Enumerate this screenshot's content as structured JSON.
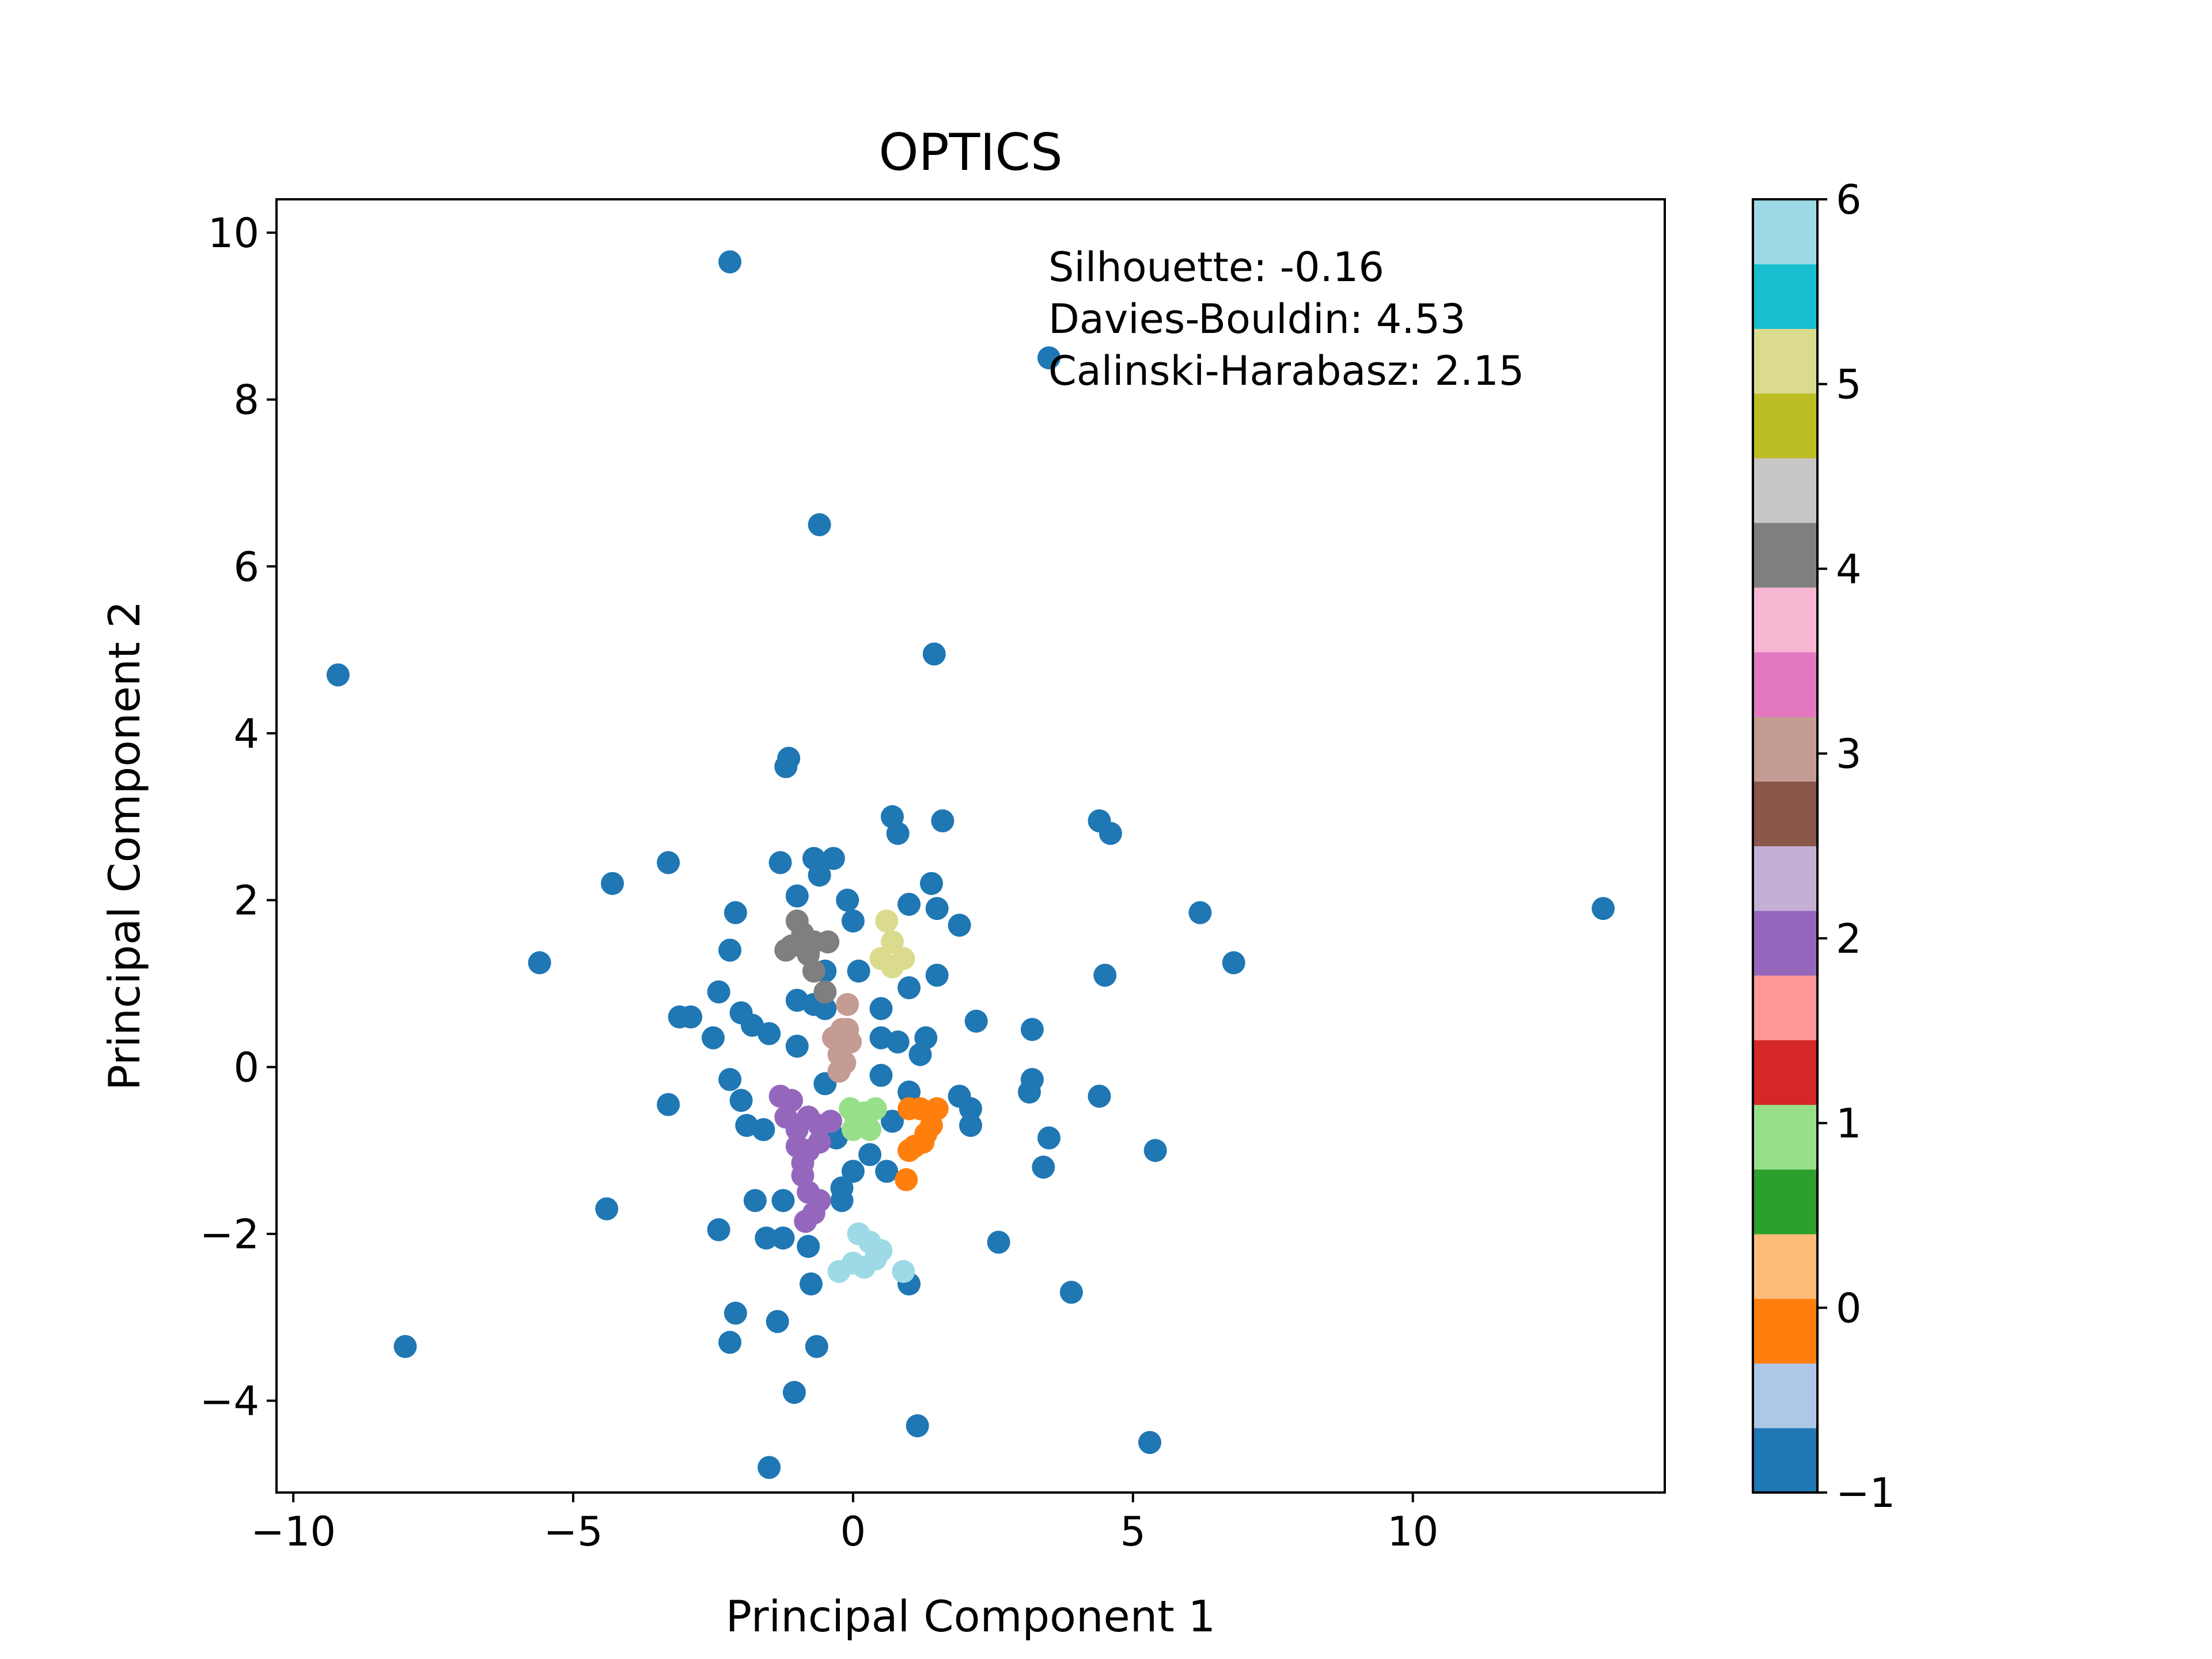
{
  "chart_data": {
    "type": "scatter",
    "title": "OPTICS",
    "xlabel": "Principal Component 1",
    "ylabel": "Principal Component 2",
    "xlim": [
      -10.3,
      14.5
    ],
    "ylim": [
      -5.1,
      10.4
    ],
    "xticks": [
      -10,
      -5,
      0,
      5,
      10
    ],
    "xtick_labels": [
      "−10",
      "−5",
      "0",
      "5",
      "10"
    ],
    "yticks": [
      -4,
      -2,
      0,
      2,
      4,
      6,
      8,
      10
    ],
    "ytick_labels": [
      "−4",
      "−2",
      "0",
      "2",
      "4",
      "6",
      "8",
      "10"
    ],
    "grid": false,
    "annotations": {
      "silhouette": "Silhouette: -0.16",
      "davies_bouldin": "Davies-Bouldin: 4.53",
      "calinski_harabasz": "Calinski-Harabasz: 2.15"
    },
    "colorbar": {
      "colormap": "tab20",
      "range": [
        -1,
        6
      ],
      "ticks": [
        -1,
        0,
        1,
        2,
        3,
        4,
        5,
        6
      ],
      "tick_labels": [
        "−1",
        "0",
        "1",
        "2",
        "3",
        "4",
        "5",
        "6"
      ],
      "colors": [
        "#1f77b4",
        "#aec7e8",
        "#ff7f0e",
        "#ffbb78",
        "#2ca02c",
        "#98df8a",
        "#d62728",
        "#ff9896",
        "#9467bd",
        "#c5b0d5",
        "#8c564b",
        "#c49c94",
        "#e377c2",
        "#f7b6d2",
        "#7f7f7f",
        "#c7c7c7",
        "#bcbd22",
        "#dbdb8d",
        "#17becf",
        "#9edae5"
      ]
    },
    "label_colors": {
      "-1": "#1f77b4",
      "0": "#ff7f0e",
      "1": "#98df8a",
      "2": "#9467bd",
      "3": "#c49c94",
      "4": "#7f7f7f",
      "5": "#dbdb8d",
      "6": "#9edae5"
    },
    "points": [
      [
        -2.2,
        9.65,
        -1
      ],
      [
        3.5,
        8.5,
        -1
      ],
      [
        -0.6,
        6.5,
        -1
      ],
      [
        -9.2,
        4.7,
        -1
      ],
      [
        1.45,
        4.95,
        -1
      ],
      [
        -1.15,
        3.7,
        -1
      ],
      [
        -1.2,
        3.6,
        -1
      ],
      [
        0.7,
        3.0,
        -1
      ],
      [
        0.8,
        2.8,
        -1
      ],
      [
        1.6,
        2.95,
        -1
      ],
      [
        4.4,
        2.95,
        -1
      ],
      [
        4.6,
        2.8,
        -1
      ],
      [
        -3.3,
        2.45,
        -1
      ],
      [
        -4.3,
        2.2,
        -1
      ],
      [
        -1.3,
        2.45,
        -1
      ],
      [
        -0.7,
        2.5,
        -1
      ],
      [
        -0.35,
        2.5,
        -1
      ],
      [
        -0.6,
        2.3,
        -1
      ],
      [
        -1.0,
        2.05,
        -1
      ],
      [
        -0.1,
        2.0,
        -1
      ],
      [
        0.0,
        1.75,
        -1
      ],
      [
        1.4,
        2.2,
        -1
      ],
      [
        1.5,
        1.9,
        -1
      ],
      [
        1.9,
        1.7,
        -1
      ],
      [
        1.0,
        1.95,
        -1
      ],
      [
        -2.1,
        1.85,
        -1
      ],
      [
        -2.2,
        1.4,
        -1
      ],
      [
        -5.6,
        1.25,
        -1
      ],
      [
        6.2,
        1.85,
        -1
      ],
      [
        6.8,
        1.25,
        -1
      ],
      [
        13.4,
        1.9,
        -1
      ],
      [
        4.5,
        1.1,
        -1
      ],
      [
        0.1,
        1.15,
        -1
      ],
      [
        -0.5,
        1.15,
        -1
      ],
      [
        1.5,
        1.1,
        -1
      ],
      [
        -2.4,
        0.9,
        -1
      ],
      [
        -1.0,
        0.8,
        -1
      ],
      [
        -0.7,
        0.75,
        -1
      ],
      [
        -0.5,
        0.7,
        -1
      ],
      [
        1.0,
        0.95,
        -1
      ],
      [
        0.5,
        0.7,
        -1
      ],
      [
        -2.0,
        0.65,
        -1
      ],
      [
        -1.8,
        0.5,
        -1
      ],
      [
        -1.5,
        0.4,
        -1
      ],
      [
        -3.1,
        0.6,
        -1
      ],
      [
        -2.9,
        0.6,
        -1
      ],
      [
        -2.5,
        0.35,
        -1
      ],
      [
        -1.0,
        0.25,
        -1
      ],
      [
        0.5,
        0.35,
        -1
      ],
      [
        0.8,
        0.3,
        -1
      ],
      [
        1.3,
        0.35,
        -1
      ],
      [
        1.2,
        0.15,
        -1
      ],
      [
        2.2,
        0.55,
        -1
      ],
      [
        3.2,
        0.45,
        -1
      ],
      [
        -2.2,
        -0.15,
        -1
      ],
      [
        -2.0,
        -0.4,
        -1
      ],
      [
        -3.3,
        -0.45,
        -1
      ],
      [
        -0.5,
        -0.2,
        -1
      ],
      [
        0.5,
        -0.1,
        -1
      ],
      [
        1.0,
        -0.3,
        -1
      ],
      [
        1.9,
        -0.35,
        -1
      ],
      [
        2.1,
        -0.5,
        -1
      ],
      [
        3.2,
        -0.15,
        -1
      ],
      [
        3.15,
        -0.3,
        -1
      ],
      [
        4.4,
        -0.35,
        -1
      ],
      [
        -1.9,
        -0.7,
        -1
      ],
      [
        -1.6,
        -0.75,
        -1
      ],
      [
        2.1,
        -0.7,
        -1
      ],
      [
        0.7,
        -0.65,
        -1
      ],
      [
        3.5,
        -0.85,
        -1
      ],
      [
        5.4,
        -1.0,
        -1
      ],
      [
        3.4,
        -1.2,
        -1
      ],
      [
        -0.3,
        -0.85,
        -1
      ],
      [
        0.3,
        -1.05,
        -1
      ],
      [
        0.6,
        -1.25,
        -1
      ],
      [
        0.0,
        -1.25,
        -1
      ],
      [
        -0.2,
        -1.45,
        -1
      ],
      [
        -1.75,
        -1.6,
        -1
      ],
      [
        -1.25,
        -1.6,
        -1
      ],
      [
        -0.2,
        -1.6,
        -1
      ],
      [
        -4.4,
        -1.7,
        -1
      ],
      [
        -2.4,
        -1.95,
        -1
      ],
      [
        -1.55,
        -2.05,
        -1
      ],
      [
        -1.25,
        -2.05,
        -1
      ],
      [
        -0.8,
        -2.15,
        -1
      ],
      [
        -0.75,
        -2.6,
        -1
      ],
      [
        1.0,
        -2.6,
        -1
      ],
      [
        2.6,
        -2.1,
        -1
      ],
      [
        3.9,
        -2.7,
        -1
      ],
      [
        -8.0,
        -3.35,
        -1
      ],
      [
        -2.1,
        -2.95,
        -1
      ],
      [
        -2.2,
        -3.3,
        -1
      ],
      [
        -1.35,
        -3.05,
        -1
      ],
      [
        -0.65,
        -3.35,
        -1
      ],
      [
        -1.05,
        -3.9,
        -1
      ],
      [
        1.15,
        -4.3,
        -1
      ],
      [
        5.3,
        -4.5,
        -1
      ],
      [
        -1.5,
        -4.8,
        -1
      ],
      [
        1.5,
        -0.5,
        0
      ],
      [
        1.4,
        -0.7,
        0
      ],
      [
        1.3,
        -0.8,
        0
      ],
      [
        1.1,
        -0.95,
        0
      ],
      [
        1.0,
        -1.0,
        0
      ],
      [
        1.25,
        -0.9,
        0
      ],
      [
        1.0,
        -0.5,
        0
      ],
      [
        1.2,
        -0.5,
        0
      ],
      [
        0.95,
        -1.35,
        0
      ],
      [
        -0.05,
        -0.5,
        1
      ],
      [
        0.05,
        -0.65,
        1
      ],
      [
        0.15,
        -0.7,
        1
      ],
      [
        0.3,
        -0.75,
        1
      ],
      [
        0.4,
        -0.5,
        1
      ],
      [
        0.2,
        -0.55,
        1
      ],
      [
        0.0,
        -0.75,
        1
      ],
      [
        -1.3,
        -0.35,
        2
      ],
      [
        -1.1,
        -0.4,
        2
      ],
      [
        -1.2,
        -0.6,
        2
      ],
      [
        -1.0,
        -0.75,
        2
      ],
      [
        -0.8,
        -0.6,
        2
      ],
      [
        -0.6,
        -0.7,
        2
      ],
      [
        -0.4,
        -0.65,
        2
      ],
      [
        -1.0,
        -0.95,
        2
      ],
      [
        -0.8,
        -1.0,
        2
      ],
      [
        -0.6,
        -0.9,
        2
      ],
      [
        -0.9,
        -1.15,
        2
      ],
      [
        -0.9,
        -1.3,
        2
      ],
      [
        -0.8,
        -1.5,
        2
      ],
      [
        -0.6,
        -1.6,
        2
      ],
      [
        -0.85,
        -1.85,
        2
      ],
      [
        -0.7,
        -1.75,
        2
      ],
      [
        -0.1,
        0.75,
        3
      ],
      [
        -0.35,
        0.35,
        3
      ],
      [
        -0.2,
        0.45,
        3
      ],
      [
        -0.05,
        0.3,
        3
      ],
      [
        -0.25,
        0.15,
        3
      ],
      [
        -0.15,
        0.05,
        3
      ],
      [
        -0.25,
        -0.05,
        3
      ],
      [
        -0.1,
        0.45,
        3
      ],
      [
        -1.0,
        1.75,
        4
      ],
      [
        -0.9,
        1.6,
        4
      ],
      [
        -0.7,
        1.5,
        4
      ],
      [
        -1.1,
        1.45,
        4
      ],
      [
        -0.8,
        1.35,
        4
      ],
      [
        -0.45,
        1.5,
        4
      ],
      [
        -0.7,
        1.15,
        4
      ],
      [
        -0.5,
        0.9,
        4
      ],
      [
        -1.2,
        1.4,
        4
      ],
      [
        0.6,
        1.75,
        5
      ],
      [
        0.7,
        1.5,
        5
      ],
      [
        0.5,
        1.3,
        5
      ],
      [
        0.9,
        1.3,
        5
      ],
      [
        0.7,
        1.2,
        5
      ],
      [
        0.1,
        -2.0,
        6
      ],
      [
        0.3,
        -2.1,
        6
      ],
      [
        0.5,
        -2.2,
        6
      ],
      [
        0.0,
        -2.35,
        6
      ],
      [
        0.2,
        -2.4,
        6
      ],
      [
        0.4,
        -2.3,
        6
      ],
      [
        -0.25,
        -2.45,
        6
      ],
      [
        0.9,
        -2.45,
        6
      ]
    ]
  }
}
